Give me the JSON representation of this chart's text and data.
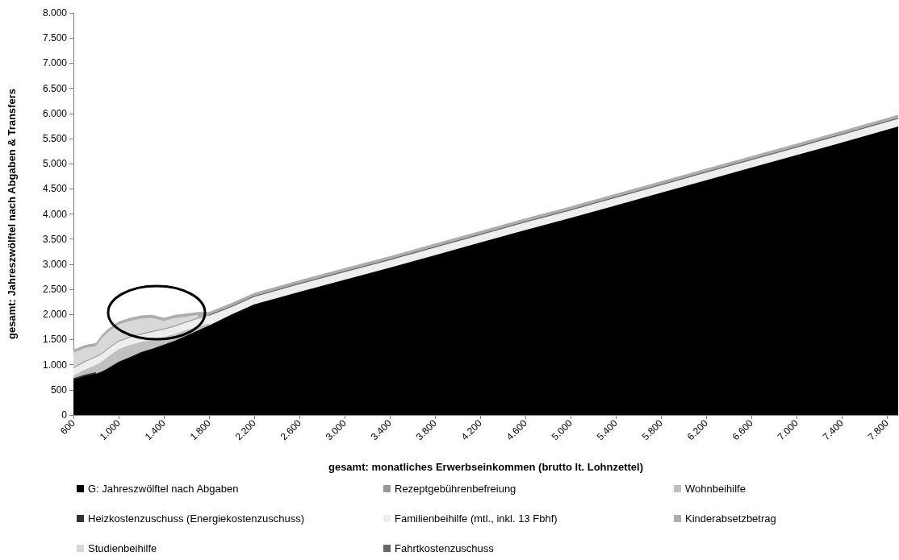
{
  "chart_data": {
    "type": "area",
    "stacked": true,
    "xlabel": "gesamt: monatliches Erwerbseinkommen (brutto lt. Lohnzettel)",
    "ylabel": "gesamt: Jahreszwölftel nach Abgaben & Transfers",
    "x": [
      600,
      700,
      800,
      850,
      900,
      1000,
      1100,
      1200,
      1300,
      1400,
      1500,
      1600,
      1700,
      1800,
      2000,
      2200,
      2600,
      3000,
      3400,
      3800,
      4200,
      4600,
      5000,
      5400,
      5800,
      6200,
      6600,
      7000,
      7400,
      7900
    ],
    "series": [
      {
        "name": "G: Jahreszwölftel nach Abgaben",
        "color": "#000000",
        "values": [
          700,
          770,
          820,
          860,
          920,
          1060,
          1150,
          1250,
          1320,
          1400,
          1480,
          1580,
          1680,
          1780,
          2000,
          2200,
          2450,
          2690,
          2930,
          3180,
          3430,
          3680,
          3920,
          4170,
          4420,
          4670,
          4920,
          5170,
          5420,
          5740
        ]
      },
      {
        "name": "Heizkostenzuschuss (Energiekostenzuschuss)",
        "color": "#333333",
        "values": [
          30,
          30,
          30,
          null,
          null,
          null,
          null,
          null,
          null,
          null,
          null,
          null,
          null,
          null,
          null,
          null,
          null,
          null,
          null,
          null,
          null,
          null,
          null,
          null,
          null,
          null,
          null,
          null,
          null,
          null
        ]
      },
      {
        "name": "Wohnbeihilfe",
        "color": "#c0c0c0",
        "values": [
          50,
          100,
          150,
          200,
          230,
          250,
          240,
          200,
          180,
          150,
          130,
          110,
          80,
          40,
          null,
          null,
          null,
          null,
          null,
          null,
          null,
          null,
          null,
          null,
          null,
          null,
          null,
          null,
          null,
          null
        ]
      },
      {
        "name": "Familienbeihilfe (mtl., inkl. 13 Fbhf)",
        "color": "#eeeeee",
        "values": [
          150,
          150,
          150,
          150,
          150,
          150,
          150,
          150,
          150,
          150,
          150,
          150,
          150,
          150,
          150,
          150,
          150,
          150,
          150,
          150,
          150,
          150,
          150,
          150,
          150,
          150,
          150,
          150,
          150,
          150
        ]
      },
      {
        "name": "Rezeptgebührenbefreiung",
        "color": "#999999",
        "values": [
          20,
          20,
          20,
          20,
          20,
          20,
          20,
          20,
          20,
          20,
          20,
          20,
          20,
          null,
          null,
          null,
          null,
          null,
          null,
          null,
          null,
          null,
          null,
          null,
          null,
          null,
          null,
          null,
          null,
          null
        ]
      },
      {
        "name": "Fahrtkostenzuschuss",
        "color": "#666666",
        "values": [
          null,
          null,
          null,
          null,
          null,
          null,
          null,
          null,
          null,
          null,
          null,
          null,
          null,
          20,
          20,
          20,
          20,
          20,
          20,
          20,
          20,
          20,
          20,
          20,
          20,
          20,
          20,
          20,
          20,
          20
        ]
      },
      {
        "name": "Studienbeihilfe",
        "color": "#d8d8d8",
        "values": [
          290,
          260,
          200,
          300,
          320,
          320,
          310,
          300,
          260,
          150,
          150,
          100,
          60,
          null,
          null,
          null,
          null,
          null,
          null,
          null,
          null,
          null,
          null,
          null,
          null,
          null,
          null,
          null,
          null,
          null
        ]
      },
      {
        "name": "Kinderabsetzbetrag",
        "color": "#adadad",
        "values": [
          60,
          60,
          60,
          60,
          60,
          60,
          60,
          60,
          60,
          60,
          60,
          60,
          60,
          60,
          60,
          60,
          60,
          60,
          60,
          60,
          60,
          60,
          60,
          60,
          60,
          60,
          60,
          60,
          60,
          60
        ]
      }
    ],
    "xlim": [
      600,
      7900
    ],
    "xticks": [
      600,
      {
        "value": 1000,
        "label": "1.000"
      },
      {
        "value": 1400,
        "label": "1.400"
      },
      {
        "value": 1800,
        "label": "1.800"
      },
      {
        "value": 2200,
        "label": "2.200"
      },
      {
        "value": 2600,
        "label": "2.600"
      },
      {
        "value": 3000,
        "label": "3.000"
      },
      {
        "value": 3400,
        "label": "3.400"
      },
      {
        "value": 3800,
        "label": "3.800"
      },
      {
        "value": 4200,
        "label": "4.200"
      },
      {
        "value": 4600,
        "label": "4.600"
      },
      {
        "value": 5000,
        "label": "5.000"
      },
      {
        "value": 5400,
        "label": "5.400"
      },
      {
        "value": 5800,
        "label": "5.800"
      },
      {
        "value": 6200,
        "label": "6.200"
      },
      {
        "value": 6600,
        "label": "6.600"
      },
      {
        "value": 7000,
        "label": "7.000"
      },
      {
        "value": 7400,
        "label": "7.400"
      },
      {
        "value": 7800,
        "label": "7.800"
      }
    ],
    "ylim": [
      0,
      8000
    ],
    "yticks": [
      0,
      500,
      {
        "value": 1000,
        "label": "1.000"
      },
      {
        "value": 1500,
        "label": "1.500"
      },
      {
        "value": 2000,
        "label": "2.000"
      },
      {
        "value": 2500,
        "label": "2.500"
      },
      {
        "value": 3000,
        "label": "3.000"
      },
      {
        "value": 3500,
        "label": "3.500"
      },
      {
        "value": 4000,
        "label": "4.000"
      },
      {
        "value": 4500,
        "label": "4.500"
      },
      {
        "value": 5000,
        "label": "5.000"
      },
      {
        "value": 5500,
        "label": "5.500"
      },
      {
        "value": 6000,
        "label": "6.000"
      },
      {
        "value": 6500,
        "label": "6.500"
      },
      {
        "value": 7000,
        "label": "7.000"
      },
      {
        "value": 7500,
        "label": "7.500"
      },
      {
        "value": 8000,
        "label": "8.000"
      }
    ],
    "grid": false,
    "legend": "bottom"
  }
}
